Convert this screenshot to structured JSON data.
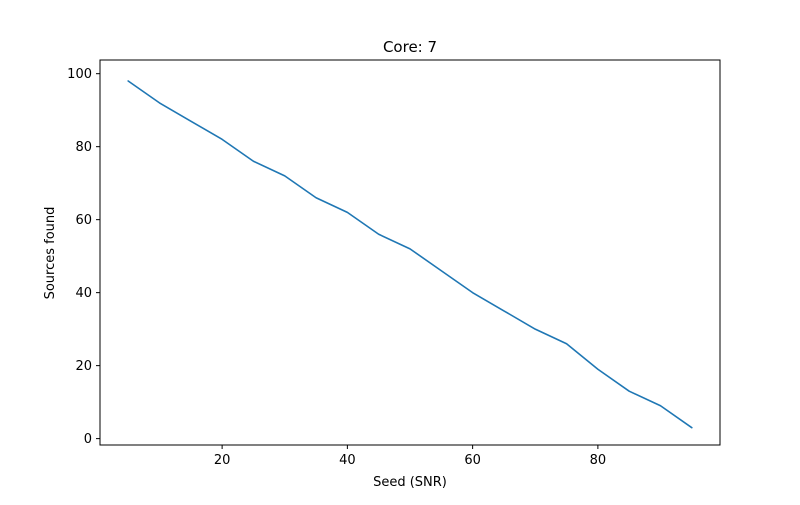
{
  "chart_data": {
    "type": "line",
    "title": "Core: 7",
    "xlabel": "Seed (SNR)",
    "ylabel": "Sources found",
    "xlim": [
      0.5,
      99.5
    ],
    "ylim": [
      -1.75,
      103.75
    ],
    "xticks": [
      20,
      40,
      60,
      80
    ],
    "yticks": [
      0,
      20,
      40,
      60,
      80,
      100
    ],
    "grid": false,
    "color": "#1f77b4",
    "series": [
      {
        "x": [
          5,
          10,
          15,
          20,
          25,
          30,
          35,
          40,
          45,
          50,
          55,
          60,
          65,
          70,
          75,
          80,
          85,
          90,
          95
        ],
        "values": [
          98,
          92,
          87,
          82,
          76,
          72,
          66,
          62,
          56,
          52,
          46,
          40,
          35,
          30,
          26,
          19,
          13,
          9,
          3
        ]
      }
    ]
  }
}
